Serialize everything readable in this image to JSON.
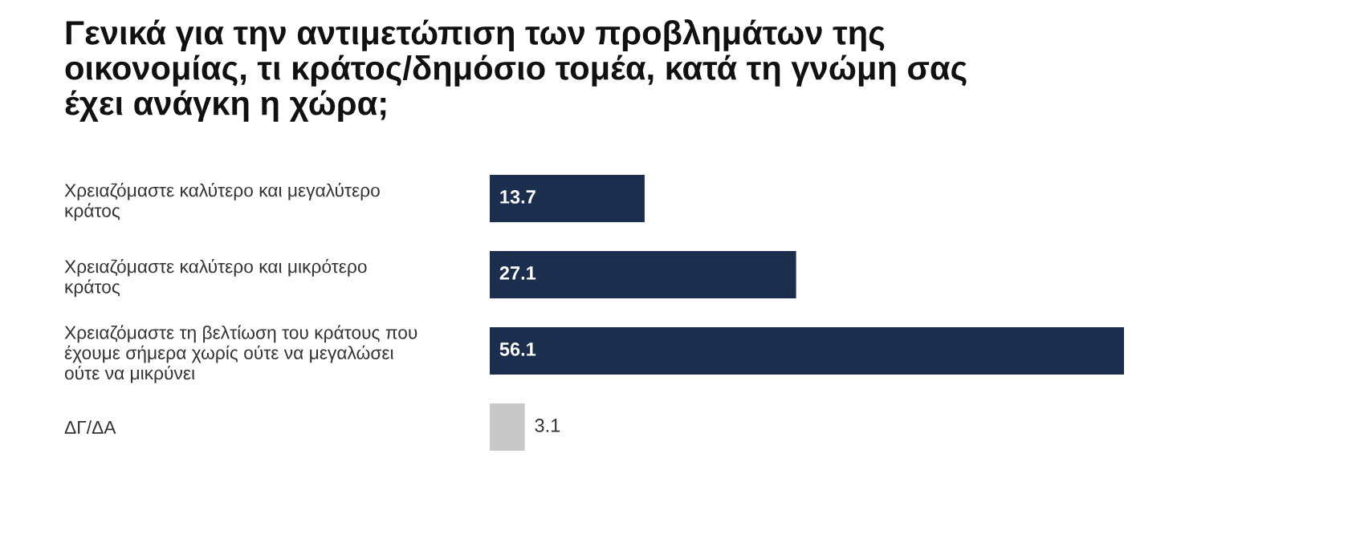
{
  "chart_data": {
    "type": "bar",
    "orientation": "horizontal",
    "title": "Γενικά για την αντιμετώπιση των προβλημάτων της\nοικονομίας, τι κράτος/δημόσιο τομέα, κατά τη γνώμη σας\nέχει ανάγκη η χώρα;",
    "categories": [
      "Χρειαζόμαστε καλύτερο και μεγαλύτερο\nκράτος",
      "Χρειαζόμαστε καλύτερο και μικρότερο\nκράτος",
      "Χρειαζόμαστε τη βελτίωση του κράτους που\nέχουμε σήμερα χωρίς ούτε να μεγαλώσει\nούτε να μικρύνει",
      "ΔΓ/ΔΑ"
    ],
    "values": [
      13.7,
      27.1,
      56.1,
      3.1
    ],
    "colors": [
      "#1c2e4d",
      "#1c2e4d",
      "#1c2e4d",
      "#c8c8c8"
    ],
    "data_labels": true,
    "grid": false,
    "legend": false
  }
}
